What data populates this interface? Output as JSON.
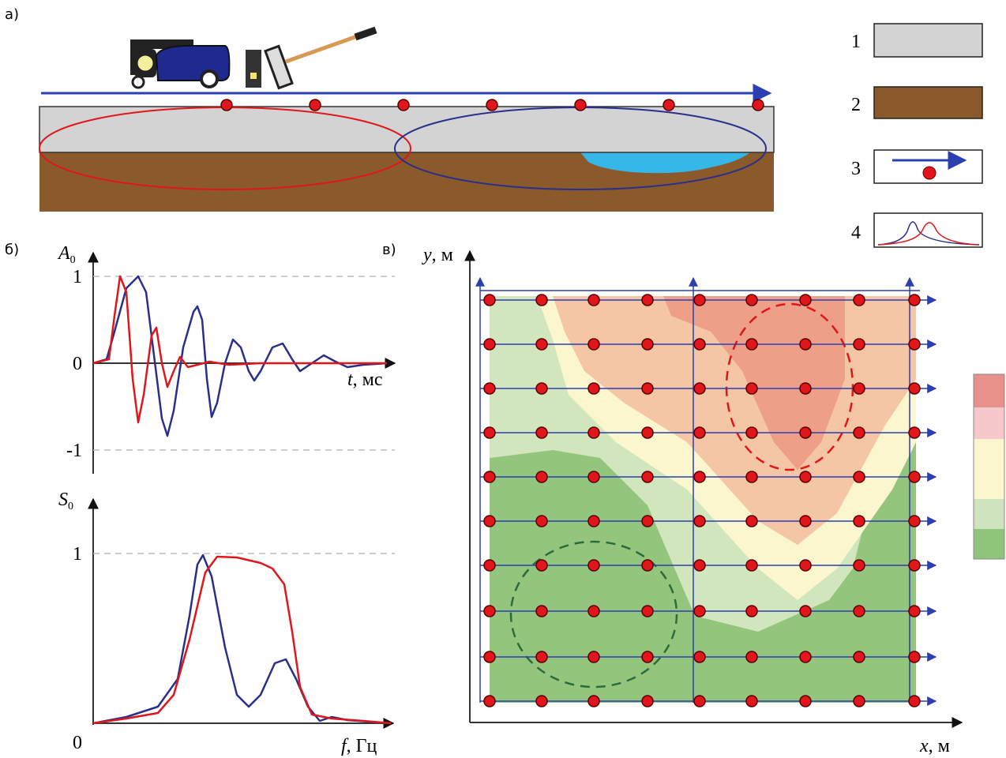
{
  "panel_a": {
    "label": "а)"
  },
  "legend": {
    "items": [
      "1",
      "2",
      "3",
      "4"
    ]
  },
  "panel_b": {
    "label": "б)",
    "signal_plot": {
      "y_axis": {
        "symbol": "A",
        "subscript": "0"
      },
      "ticks": [
        "1",
        "0",
        "-1"
      ],
      "x_axis": {
        "symbol": "t",
        "unit": ", мс"
      }
    },
    "spectrum_plot": {
      "y_axis": {
        "symbol": "S",
        "subscript": "0"
      },
      "ticks": [
        "1",
        "0"
      ],
      "x_axis": {
        "symbol": "f",
        "unit": ", Гц"
      }
    }
  },
  "panel_v": {
    "label": "в)",
    "y_axis": {
      "symbol": "y",
      "unit": ", м"
    },
    "x_axis": {
      "symbol": "x",
      "unit": ", м"
    }
  }
}
